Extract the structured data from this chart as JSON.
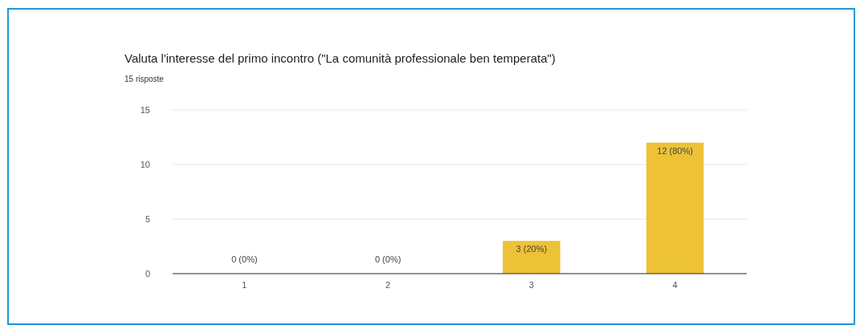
{
  "chart_data": {
    "type": "bar",
    "title": "Valuta l'interesse del primo incontro (\"La comunità professionale ben temperata\")",
    "subtitle": "15 risposte",
    "categories": [
      "1",
      "2",
      "3",
      "4"
    ],
    "values": [
      0,
      0,
      3,
      12
    ],
    "color": "#edc237",
    "value_labels": [
      "0 (0%)",
      "0 (0%)",
      "3 (20%)",
      "12 (80%)"
    ],
    "ylim": [
      0,
      15
    ],
    "yticks": [
      0,
      5,
      10,
      15
    ],
    "grid": "y"
  }
}
